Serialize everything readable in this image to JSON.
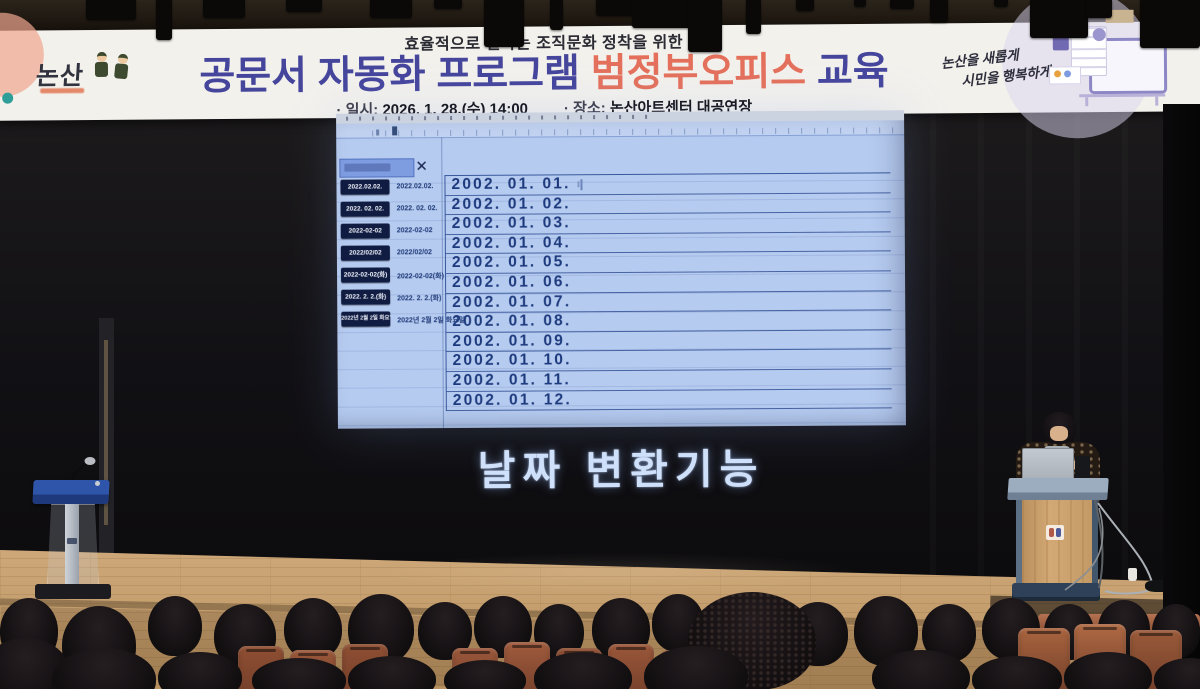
{
  "banner": {
    "topline": "효율적으로 일하는 조직문화 정착을 위한",
    "title_part1": "공문서 자동화 프로그램",
    "title_highlight": "범정부오피스",
    "title_part2": "교육",
    "date_label": "· 일시:",
    "date_value": "2026. 1. 28.(수) 14:00",
    "venue_label": "· 장소:",
    "venue_value": "논산아트센터 대공연장",
    "logo_text": "논산",
    "slogan_line1": "논산을 새롭게",
    "slogan_line2": "시민을 행복하게"
  },
  "screen": {
    "close_icon": "✕",
    "format_items": [
      {
        "button": "2022.02.02.",
        "label": "2022.02.02."
      },
      {
        "button": "2022. 02. 02.",
        "label": "2022. 02. 02."
      },
      {
        "button": "2022-02-02",
        "label": "2022-02-02"
      },
      {
        "button": "2022/02/02",
        "label": "2022/02/02"
      },
      {
        "button": "2022-02-02(화)",
        "label": "2022-02-02(화)"
      },
      {
        "button": "2022. 2. 2.(화)",
        "label": "2022. 2. 2.(화)"
      },
      {
        "button": "2022년 2월 2일 화요일",
        "label": "2022년 2월 2일 화요일"
      }
    ],
    "dates": [
      "2002. 01. 01.",
      "2002. 01. 02.",
      "2002. 01. 03.",
      "2002. 01. 04.",
      "2002. 01. 05.",
      "2002. 01. 06.",
      "2002. 01. 07.",
      "2002. 01. 08.",
      "2002. 01. 09.",
      "2002. 01. 10.",
      "2002. 01. 11.",
      "2002. 01. 12."
    ],
    "caption": "날짜 변환기능"
  },
  "colors": {
    "title_navy": "#45459c",
    "title_highlight": "#e4705b",
    "screen_background": "#b6cbf0",
    "screen_text": "#1d3a7d",
    "format_button_background": "#0f1b40",
    "selected_input": "#7e9ce0",
    "caption_text": "#cfe0fa",
    "stage_wood": "#c29c6e",
    "seat_terracotta": "#a55f3d"
  }
}
